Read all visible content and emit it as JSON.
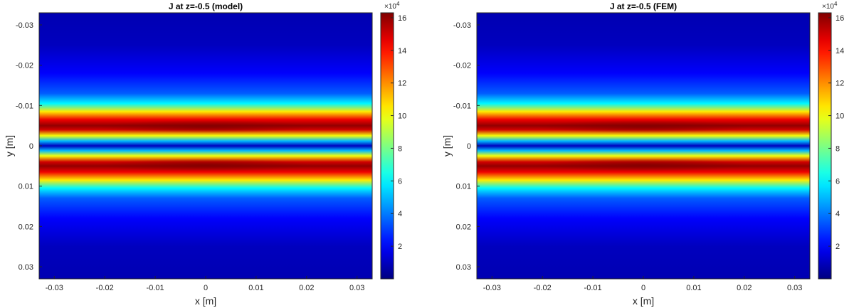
{
  "chart_data": [
    {
      "type": "heatmap",
      "title": "J at z=-0.5 (model)",
      "xlabel": "x [m]",
      "ylabel": "y [m]",
      "xlim": [
        -0.033,
        0.033
      ],
      "ylim": [
        -0.033,
        0.033
      ],
      "y_direction": "reverse",
      "xticks": [
        -0.03,
        -0.02,
        -0.01,
        0,
        0.01,
        0.02,
        0.03
      ],
      "xtick_labels": [
        "-0.03",
        "-0.02",
        "-0.01",
        "0",
        "0.01",
        "0.02",
        "0.03"
      ],
      "yticks": [
        -0.03,
        -0.02,
        -0.01,
        0,
        0.01,
        0.02,
        0.03
      ],
      "ytick_labels": [
        "-0.03",
        "-0.02",
        "-0.01",
        "0",
        "0.01",
        "0.02",
        "0.03"
      ],
      "colorbar": {
        "min": 0,
        "max": 16.3,
        "ticks": [
          2,
          4,
          6,
          8,
          10,
          12,
          14,
          16
        ],
        "tick_labels": [
          "2",
          "4",
          "6",
          "8",
          "10",
          "12",
          "14",
          "16"
        ],
        "multiplier_base": "×10",
        "multiplier_exp": "4"
      },
      "value_profile_y": [
        -0.033,
        -0.025,
        -0.018,
        -0.013,
        -0.0105,
        -0.0085,
        -0.0065,
        -0.005,
        -0.004,
        -0.0025,
        -0.0012,
        0,
        0.0012,
        0.0025,
        0.004,
        0.005,
        0.0065,
        0.0085,
        0.0105,
        0.013,
        0.018,
        0.025,
        0.033
      ],
      "value_profile_j": [
        0.8,
        1.0,
        2.0,
        3.5,
        6.0,
        10.5,
        14.5,
        16.0,
        15.0,
        10.0,
        5.0,
        1.0,
        5.0,
        10.0,
        15.0,
        16.0,
        14.5,
        10.5,
        6.0,
        3.5,
        2.0,
        1.0,
        0.8
      ],
      "peak_value": 16.3,
      "peak_locations": [
        [
          0,
          -0.0045
        ],
        [
          0,
          0.0045
        ]
      ]
    },
    {
      "type": "heatmap",
      "title": "J at z=-0.5 (FEM)",
      "xlabel": "x [m]",
      "ylabel": "y [m]",
      "xlim": [
        -0.033,
        0.033
      ],
      "ylim": [
        -0.033,
        0.033
      ],
      "y_direction": "reverse",
      "xticks": [
        -0.03,
        -0.02,
        -0.01,
        0,
        0.01,
        0.02,
        0.03
      ],
      "xtick_labels": [
        "-0.03",
        "-0.02",
        "-0.01",
        "0",
        "0.01",
        "0.02",
        "0.03"
      ],
      "yticks": [
        -0.03,
        -0.02,
        -0.01,
        0,
        0.01,
        0.02,
        0.03
      ],
      "ytick_labels": [
        "-0.03",
        "-0.02",
        "-0.01",
        "0",
        "0.01",
        "0.02",
        "0.03"
      ],
      "colorbar": {
        "min": 0,
        "max": 16.3,
        "ticks": [
          2,
          4,
          6,
          8,
          10,
          12,
          14,
          16
        ],
        "tick_labels": [
          "2",
          "4",
          "6",
          "8",
          "10",
          "12",
          "14",
          "16"
        ],
        "multiplier_base": "×10",
        "multiplier_exp": "4"
      },
      "value_profile_y": [
        -0.033,
        -0.025,
        -0.018,
        -0.013,
        -0.0105,
        -0.0085,
        -0.0065,
        -0.005,
        -0.004,
        -0.0025,
        -0.0012,
        0,
        0.0012,
        0.0025,
        0.004,
        0.005,
        0.0065,
        0.0085,
        0.0105,
        0.013,
        0.018,
        0.025,
        0.033
      ],
      "value_profile_j": [
        0.8,
        1.0,
        2.0,
        3.5,
        6.0,
        10.5,
        14.5,
        16.0,
        15.0,
        10.0,
        5.0,
        1.0,
        5.0,
        10.0,
        15.0,
        16.0,
        14.5,
        10.5,
        6.0,
        3.5,
        2.0,
        1.0,
        0.8
      ],
      "peak_value": 16.3,
      "peak_locations": [
        [
          0,
          -0.0045
        ],
        [
          0,
          0.0045
        ]
      ]
    }
  ]
}
